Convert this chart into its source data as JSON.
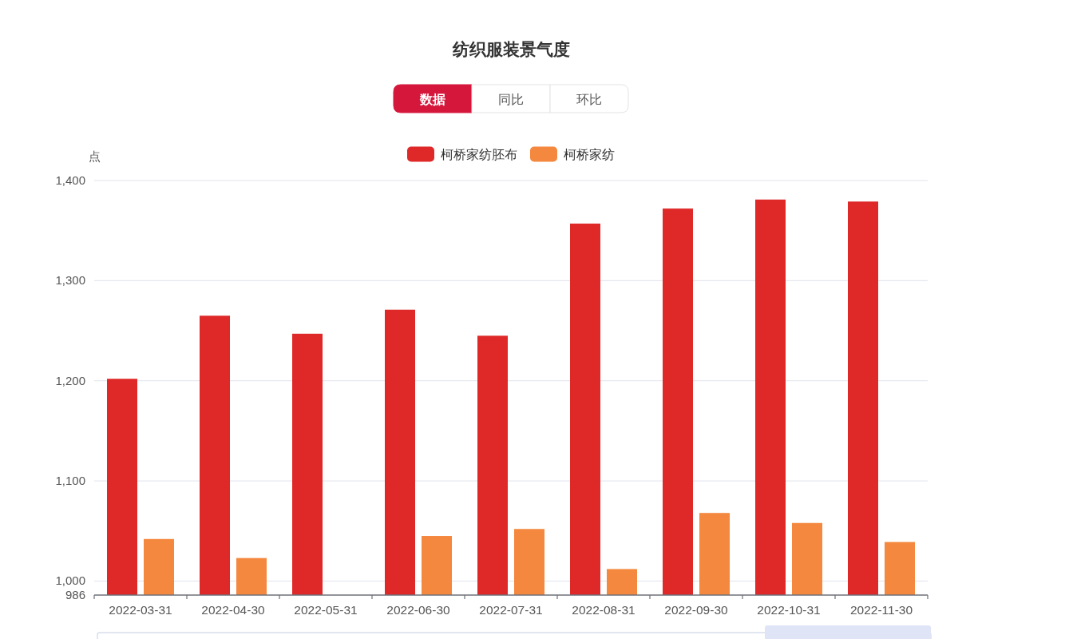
{
  "chart_data": {
    "type": "bar",
    "title": "纺织服装景气度",
    "ylabel": "点",
    "annotations": [
      "数据",
      "同比",
      "环比"
    ],
    "categories": [
      "2022-03-31",
      "2022-04-30",
      "2022-05-31",
      "2022-06-30",
      "2022-07-31",
      "2022-08-31",
      "2022-09-30",
      "2022-10-31",
      "2022-11-30"
    ],
    "series": [
      {
        "name": "柯桥家纺胚布",
        "color": "#df2828",
        "values": [
          1202,
          1265,
          1247,
          1271,
          1245,
          1357,
          1372,
          1381,
          1379
        ]
      },
      {
        "name": "柯桥家纺",
        "color": "#f4883e",
        "values": [
          1042,
          1023,
          null,
          1045,
          1052,
          1012,
          1068,
          1058,
          1039
        ]
      }
    ],
    "ylim": [
      986,
      1400
    ],
    "yticks": [
      986,
      {
        "value": 1000,
        "label": "1,000"
      },
      {
        "value": 1100,
        "label": "1,100"
      },
      {
        "value": 1200,
        "label": "1,200"
      },
      {
        "value": 1300,
        "label": "1,300"
      },
      {
        "value": 1400,
        "label": "1,400"
      }
    ],
    "grid": "y",
    "legend": "top"
  }
}
